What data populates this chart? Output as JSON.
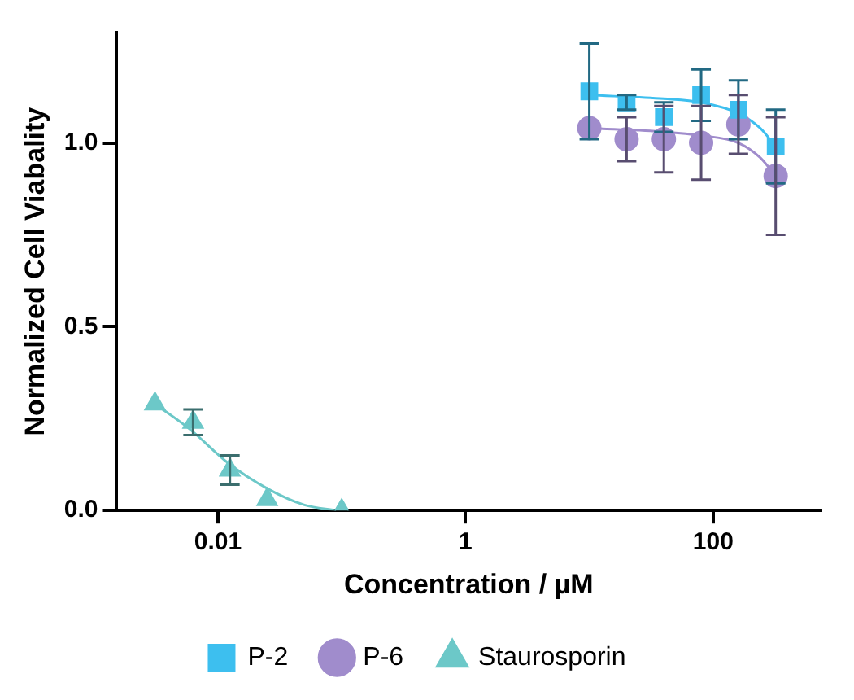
{
  "chart_data": {
    "type": "scatter",
    "xlabel": "Concentration / µM",
    "ylabel": "Normalized Cell Viabality",
    "log": "x",
    "grid": false,
    "legend": "bottom",
    "xlim": [
      0.0015,
      750
    ],
    "xticks": [
      0.01,
      1,
      100
    ],
    "ylim": [
      0,
      1.3
    ],
    "yticks": [
      {
        "value": 0,
        "label": "0.0"
      },
      {
        "value": 0.5,
        "label": "0.5"
      },
      {
        "value": 1,
        "label": "1.0"
      }
    ],
    "series": [
      {
        "name": "P-2",
        "color": "#3dbfef",
        "marker": "square",
        "x": [
          10,
          20,
          40,
          80,
          160,
          320
        ],
        "values": [
          1.14,
          1.11,
          1.07,
          1.13,
          1.09,
          0.99
        ],
        "errors": [
          0.13,
          0.02,
          0.04,
          0.07,
          0.08,
          0.1
        ]
      },
      {
        "name": "P-6",
        "color": "#a08ccc",
        "marker": "circle",
        "x": [
          10,
          20,
          40,
          80,
          160,
          320
        ],
        "values": [
          1.04,
          1.01,
          1.01,
          1.0,
          1.05,
          0.91
        ],
        "errors": [
          null,
          0.06,
          0.09,
          0.1,
          0.08,
          0.16
        ]
      },
      {
        "name": "Staurosporin",
        "color": "#6cc8c8",
        "marker": "triangle",
        "x": [
          0.0031,
          0.0063,
          0.0125,
          0.025,
          0.1
        ],
        "values": [
          0.29,
          0.24,
          0.11,
          0.03,
          0.0
        ],
        "errors": [
          null,
          0.035,
          0.04,
          null,
          null
        ]
      },
      {
        "type": "line",
        "color": "#3dbfef",
        "marker": "none",
        "x": [
          10,
          40,
          80,
          160,
          240,
          320
        ],
        "values": [
          1.13,
          1.12,
          1.11,
          1.08,
          1.04,
          0.99
        ]
      },
      {
        "type": "line",
        "color": "#a08ccc",
        "marker": "none",
        "x": [
          10,
          40,
          80,
          160,
          240,
          320
        ],
        "values": [
          1.04,
          1.03,
          1.02,
          1.0,
          0.96,
          0.91
        ]
      },
      {
        "type": "line",
        "color": "#6cc8c8",
        "marker": "none",
        "x": [
          0.0031,
          0.006,
          0.012,
          0.025,
          0.05,
          0.09
        ],
        "values": [
          0.29,
          0.22,
          0.13,
          0.06,
          0.015,
          0.0
        ]
      }
    ]
  }
}
